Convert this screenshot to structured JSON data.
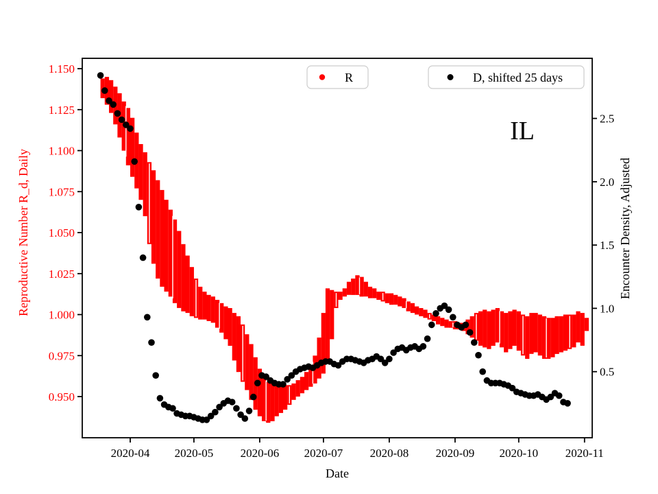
{
  "annotation": "IL",
  "legend": [
    {
      "label": "R",
      "color": "#ff0000"
    },
    {
      "label": "D, shifted 25 days",
      "color": "#000000"
    }
  ],
  "x_axis": {
    "label": "Date",
    "tick_labels": [
      "2020-04",
      "2020-05",
      "2020-06",
      "2020-07",
      "2020-08",
      "2020-09",
      "2020-10",
      "2020-11"
    ],
    "tick_t": [
      0,
      30,
      61,
      91,
      122,
      153,
      183,
      214
    ],
    "t_origin": "days since 2020-04-01",
    "lim": [
      -22.6,
      217.6
    ]
  },
  "y_left": {
    "label": "Reproductive Number R_d, Daily",
    "color": "#ff0000",
    "tick_labels": [
      "0.950",
      "0.975",
      "1.000",
      "1.025",
      "1.050",
      "1.075",
      "1.100",
      "1.125",
      "1.150"
    ],
    "tick_values": [
      0.95,
      0.975,
      1.0,
      1.025,
      1.05,
      1.075,
      1.1,
      1.125,
      1.15
    ],
    "lim": [
      0.9249,
      1.1563
    ]
  },
  "y_right": {
    "label": "Encounter Density, Adjusted",
    "color": "#000000",
    "tick_labels": [
      "0.5",
      "1.0",
      "1.5",
      "2.0",
      "2.5"
    ],
    "tick_values": [
      0.5,
      1.0,
      1.5,
      2.0,
      2.5
    ],
    "lim": [
      -0.022,
      2.975
    ]
  },
  "chart_data": {
    "type": "scatter",
    "title": "",
    "xlabel": "Date",
    "ylabel_left": "Reproductive Number R_d, Daily",
    "ylabel_right": "Encounter Density, Adjusted",
    "grid": false,
    "legend_position": "top",
    "series": [
      {
        "name": "R",
        "axis": "left",
        "style": "errorbar-band",
        "color": "#ff0000",
        "note": "points are [t, lo, hi] where t = days since 2020-04-01, lo/hi = R_d confidence band",
        "points": [
          [
            -13,
            1.132,
            1.144
          ],
          [
            -11,
            1.128,
            1.145
          ],
          [
            -9,
            1.123,
            1.143
          ],
          [
            -7,
            1.116,
            1.139
          ],
          [
            -5,
            1.108,
            1.135
          ],
          [
            -3,
            1.1,
            1.13
          ],
          [
            -1,
            1.091,
            1.126
          ],
          [
            1,
            1.084,
            1.12
          ],
          [
            3,
            1.077,
            1.111
          ],
          [
            5,
            1.07,
            1.104
          ],
          [
            7,
            1.06,
            1.099
          ],
          [
            9,
            1.043,
            1.093
          ],
          [
            11,
            1.031,
            1.088
          ],
          [
            13,
            1.022,
            1.082
          ],
          [
            15,
            1.017,
            1.076
          ],
          [
            17,
            1.014,
            1.07
          ],
          [
            19,
            1.011,
            1.064
          ],
          [
            21,
            1.007,
            1.058
          ],
          [
            23,
            1.004,
            1.051
          ],
          [
            25,
            1.002,
            1.043
          ],
          [
            27,
            1.001,
            1.036
          ],
          [
            29,
            0.999,
            1.029
          ],
          [
            31,
            0.998,
            1.022
          ],
          [
            33,
            0.997,
            1.017
          ],
          [
            35,
            0.997,
            1.014
          ],
          [
            37,
            0.996,
            1.012
          ],
          [
            39,
            0.995,
            1.011
          ],
          [
            41,
            0.992,
            1.009
          ],
          [
            43,
            0.989,
            1.007
          ],
          [
            45,
            0.985,
            1.005
          ],
          [
            47,
            0.981,
            1.004
          ],
          [
            49,
            0.972,
            1.001
          ],
          [
            51,
            0.965,
            0.999
          ],
          [
            53,
            0.959,
            0.994
          ],
          [
            55,
            0.954,
            0.988
          ],
          [
            57,
            0.948,
            0.982
          ],
          [
            59,
            0.942,
            0.974
          ],
          [
            61,
            0.938,
            0.967
          ],
          [
            63,
            0.935,
            0.962
          ],
          [
            65,
            0.934,
            0.959
          ],
          [
            67,
            0.935,
            0.958
          ],
          [
            69,
            0.938,
            0.957
          ],
          [
            71,
            0.94,
            0.957
          ],
          [
            73,
            0.942,
            0.957
          ],
          [
            75,
            0.945,
            0.957
          ],
          [
            77,
            0.948,
            0.958
          ],
          [
            79,
            0.95,
            0.96
          ],
          [
            81,
            0.952,
            0.962
          ],
          [
            83,
            0.954,
            0.965
          ],
          [
            85,
            0.956,
            0.969
          ],
          [
            87,
            0.958,
            0.975
          ],
          [
            89,
            0.961,
            0.986
          ],
          [
            91,
            0.964,
            1.001
          ],
          [
            93,
            0.971,
            1.016
          ],
          [
            95,
            0.985,
            1.015
          ],
          [
            97,
            1.004,
            1.014
          ],
          [
            99,
            1.009,
            1.014
          ],
          [
            101,
            1.011,
            1.016
          ],
          [
            103,
            1.012,
            1.02
          ],
          [
            105,
            1.012,
            1.022
          ],
          [
            107,
            1.012,
            1.024
          ],
          [
            109,
            1.011,
            1.023
          ],
          [
            111,
            1.011,
            1.02
          ],
          [
            113,
            1.01,
            1.017
          ],
          [
            115,
            1.01,
            1.016
          ],
          [
            117,
            1.009,
            1.014
          ],
          [
            119,
            1.008,
            1.014
          ],
          [
            121,
            1.007,
            1.013
          ],
          [
            123,
            1.006,
            1.013
          ],
          [
            125,
            1.006,
            1.012
          ],
          [
            127,
            1.005,
            1.011
          ],
          [
            129,
            1.004,
            1.01
          ],
          [
            131,
            1.002,
            1.008
          ],
          [
            133,
            1.001,
            1.007
          ],
          [
            135,
            1.0,
            1.005
          ],
          [
            137,
            0.999,
            1.004
          ],
          [
            139,
            0.998,
            1.003
          ],
          [
            141,
            0.997,
            1.001
          ],
          [
            143,
            0.996,
            1.0
          ],
          [
            145,
            0.994,
            0.999
          ],
          [
            147,
            0.993,
            0.998
          ],
          [
            149,
            0.992,
            0.997
          ],
          [
            151,
            0.992,
            0.996
          ],
          [
            153,
            0.991,
            0.996
          ],
          [
            155,
            0.991,
            0.995
          ],
          [
            157,
            0.99,
            0.995
          ],
          [
            159,
            0.988,
            0.997
          ],
          [
            161,
            0.986,
            0.999
          ],
          [
            163,
            0.984,
            1.001
          ],
          [
            165,
            0.981,
            1.002
          ],
          [
            167,
            0.98,
            1.003
          ],
          [
            169,
            0.979,
            1.002
          ],
          [
            171,
            0.981,
            1.003
          ],
          [
            173,
            0.983,
            1.004
          ],
          [
            175,
            0.98,
            1.002
          ],
          [
            177,
            0.977,
            1.001
          ],
          [
            179,
            0.979,
            1.002
          ],
          [
            181,
            0.981,
            1.003
          ],
          [
            183,
            0.978,
            1.002
          ],
          [
            185,
            0.975,
            1.0
          ],
          [
            187,
            0.973,
            0.999
          ],
          [
            189,
            0.976,
            1.001
          ],
          [
            191,
            0.977,
            1.001
          ],
          [
            193,
            0.975,
            1.0
          ],
          [
            195,
            0.973,
            0.999
          ],
          [
            197,
            0.973,
            0.998
          ],
          [
            199,
            0.974,
            0.998
          ],
          [
            201,
            0.976,
            0.999
          ],
          [
            203,
            0.977,
            0.999
          ],
          [
            205,
            0.978,
            1.0
          ],
          [
            207,
            0.979,
            1.0
          ],
          [
            209,
            0.98,
            1.0
          ],
          [
            211,
            0.983,
            1.002
          ],
          [
            213,
            0.981,
            1.001
          ],
          [
            215,
            0.99,
            0.998
          ]
        ],
        "gap_ts": [
          -2,
          9,
          20,
          31,
          42,
          53,
          64,
          75,
          86,
          97,
          108,
          119,
          130,
          141,
          152,
          163,
          174,
          185,
          196,
          207
        ]
      },
      {
        "name": "D, shifted 25 days",
        "axis": "right",
        "style": "dots",
        "color": "#000000",
        "note": "points are [t, D] where t = days since 2020-04-01, D = encounter density (adjusted)",
        "points": [
          [
            -14,
            2.84
          ],
          [
            -12,
            2.72
          ],
          [
            -10,
            2.64
          ],
          [
            -8,
            2.61
          ],
          [
            -6,
            2.54
          ],
          [
            -4,
            2.49
          ],
          [
            -2,
            2.45
          ],
          [
            0,
            2.42
          ],
          [
            2,
            2.16
          ],
          [
            4,
            1.8
          ],
          [
            6,
            1.4
          ],
          [
            8,
            0.93
          ],
          [
            10,
            0.73
          ],
          [
            12,
            0.47
          ],
          [
            14,
            0.29
          ],
          [
            16,
            0.24
          ],
          [
            18,
            0.22
          ],
          [
            20,
            0.21
          ],
          [
            22,
            0.17
          ],
          [
            24,
            0.16
          ],
          [
            26,
            0.15
          ],
          [
            28,
            0.15
          ],
          [
            30,
            0.14
          ],
          [
            32,
            0.13
          ],
          [
            34,
            0.12
          ],
          [
            36,
            0.12
          ],
          [
            38,
            0.15
          ],
          [
            40,
            0.18
          ],
          [
            42,
            0.22
          ],
          [
            44,
            0.25
          ],
          [
            46,
            0.27
          ],
          [
            48,
            0.26
          ],
          [
            50,
            0.21
          ],
          [
            52,
            0.16
          ],
          [
            54,
            0.13
          ],
          [
            56,
            0.19
          ],
          [
            58,
            0.3
          ],
          [
            60,
            0.41
          ],
          [
            62,
            0.47
          ],
          [
            64,
            0.46
          ],
          [
            66,
            0.43
          ],
          [
            68,
            0.41
          ],
          [
            70,
            0.4
          ],
          [
            72,
            0.4
          ],
          [
            74,
            0.44
          ],
          [
            76,
            0.47
          ],
          [
            78,
            0.5
          ],
          [
            80,
            0.52
          ],
          [
            82,
            0.53
          ],
          [
            84,
            0.54
          ],
          [
            86,
            0.53
          ],
          [
            88,
            0.55
          ],
          [
            90,
            0.57
          ],
          [
            92,
            0.58
          ],
          [
            94,
            0.58
          ],
          [
            96,
            0.56
          ],
          [
            98,
            0.55
          ],
          [
            100,
            0.58
          ],
          [
            102,
            0.6
          ],
          [
            104,
            0.6
          ],
          [
            106,
            0.59
          ],
          [
            108,
            0.58
          ],
          [
            110,
            0.57
          ],
          [
            112,
            0.59
          ],
          [
            114,
            0.6
          ],
          [
            116,
            0.62
          ],
          [
            118,
            0.6
          ],
          [
            120,
            0.57
          ],
          [
            122,
            0.6
          ],
          [
            124,
            0.65
          ],
          [
            126,
            0.68
          ],
          [
            128,
            0.69
          ],
          [
            130,
            0.67
          ],
          [
            132,
            0.69
          ],
          [
            134,
            0.7
          ],
          [
            136,
            0.68
          ],
          [
            138,
            0.7
          ],
          [
            140,
            0.76
          ],
          [
            142,
            0.87
          ],
          [
            144,
            0.96
          ],
          [
            146,
            1.0
          ],
          [
            148,
            1.02
          ],
          [
            150,
            0.99
          ],
          [
            152,
            0.93
          ],
          [
            154,
            0.87
          ],
          [
            156,
            0.85
          ],
          [
            158,
            0.87
          ],
          [
            160,
            0.81
          ],
          [
            162,
            0.73
          ],
          [
            164,
            0.63
          ],
          [
            166,
            0.5
          ],
          [
            168,
            0.43
          ],
          [
            170,
            0.41
          ],
          [
            172,
            0.41
          ],
          [
            174,
            0.41
          ],
          [
            176,
            0.4
          ],
          [
            178,
            0.39
          ],
          [
            180,
            0.37
          ],
          [
            182,
            0.34
          ],
          [
            184,
            0.33
          ],
          [
            186,
            0.32
          ],
          [
            188,
            0.31
          ],
          [
            190,
            0.31
          ],
          [
            192,
            0.32
          ],
          [
            194,
            0.3
          ],
          [
            196,
            0.28
          ],
          [
            198,
            0.3
          ],
          [
            200,
            0.33
          ],
          [
            202,
            0.31
          ],
          [
            204,
            0.26
          ],
          [
            206,
            0.25
          ]
        ]
      }
    ]
  }
}
